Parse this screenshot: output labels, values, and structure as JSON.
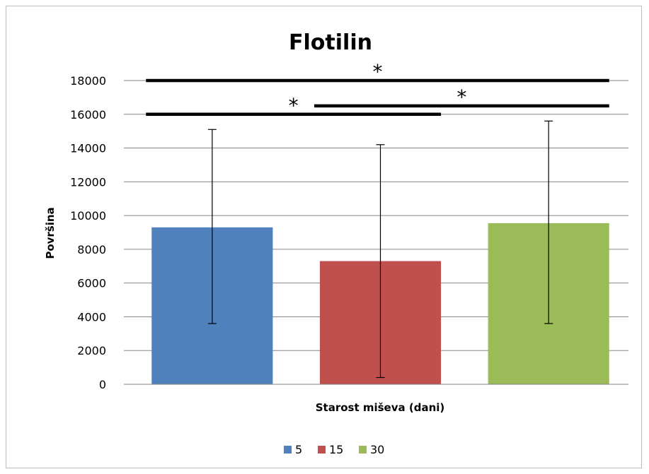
{
  "chart_data": {
    "type": "bar",
    "title": "Flotilin",
    "xlabel": "Starost miševa (dani)",
    "ylabel": "Površina",
    "ylim": [
      0,
      18000
    ],
    "y_ticks": [
      "0",
      "2000",
      "4000",
      "6000",
      "8000",
      "10000",
      "12000",
      "14000",
      "16000",
      "18000"
    ],
    "grid": true,
    "legend_position": "bottom",
    "series": [
      {
        "name": "5",
        "color": "#4F81BD",
        "value": 9300,
        "error_low": 3600,
        "error_high": 15100
      },
      {
        "name": "15",
        "color": "#C0504D",
        "value": 7300,
        "error_low": 400,
        "error_high": 14200
      },
      {
        "name": "30",
        "color": "#9BBB59",
        "value": 9550,
        "error_low": 3600,
        "error_high": 15600
      }
    ],
    "significance": [
      {
        "from": "5",
        "to": "30",
        "y": 18000,
        "label": "*"
      },
      {
        "from": "5",
        "to": "15",
        "y": 16000,
        "label": "*"
      },
      {
        "from": "15",
        "to": "30",
        "y": 16500,
        "label": "*"
      }
    ]
  }
}
